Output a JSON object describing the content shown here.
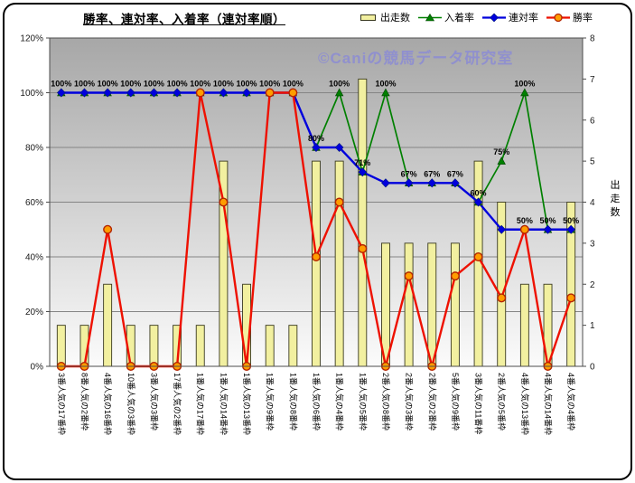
{
  "title": "勝率、連対率、入着率（連対率順）",
  "watermark": "©Caniの競馬データ研究室",
  "legend": [
    {
      "key": "starts",
      "label": "出走数",
      "marker": "bar",
      "color": "#f2f0a0"
    },
    {
      "key": "nyuchaku",
      "label": "入着率",
      "marker": "triangle",
      "color": "#008000"
    },
    {
      "key": "rentai",
      "label": "連対率",
      "marker": "diamond",
      "color": "#0000dd"
    },
    {
      "key": "shoritsu",
      "label": "勝率",
      "marker": "circle",
      "color": "#ee1100"
    }
  ],
  "colors": {
    "bar_fill": "#f2f0a0",
    "bar_stroke": "#3a3a20",
    "nyuchaku": "#008000",
    "rentai": "#0000dd",
    "shoritsu": "#ee1100",
    "marker_fill": "#ff9d00",
    "grid": "#858585",
    "plot_border": "#4d4d4d",
    "plot_top": "#a7a7a7",
    "plot_bottom": "#fbfbfb",
    "axis_text": "#1a1a1a"
  },
  "chart_data": {
    "type": "bar",
    "combo": "bar+line",
    "title": "勝率、連対率、入着率（連対率順）",
    "legend_position": "top",
    "grid": "horizontal",
    "left_axis": {
      "min": 0,
      "max": 120,
      "step": 20,
      "ticks": [
        "0%",
        "20%",
        "40%",
        "60%",
        "80%",
        "100%",
        "120%"
      ]
    },
    "right_axis": {
      "min": 0,
      "max": 8,
      "step": 1,
      "label": "出走数",
      "ticks": [
        "0",
        "1",
        "2",
        "3",
        "4",
        "5",
        "6",
        "7",
        "8"
      ]
    },
    "categories": [
      "3番人気の17番枠",
      "8番人気の2番枠",
      "4番人気の16番枠",
      "10番人気の3番枠",
      "3番人気の3番枠",
      "17番人気の2番枠",
      "1番人気の17番枠",
      "1番人気の14番枠",
      "1番人気の13番枠",
      "1番人気の9番枠",
      "1番人気の8番枠",
      "1番人気の6番枠",
      "1番人気の4番枠",
      "1番人気の5番枠",
      "2番人気の8番枠",
      "2番人気の3番枠",
      "2番人気の2番枠",
      "5番人気の9番枠",
      "3番人気の11番枠",
      "2番人気の5番枠",
      "4番人気の13番枠",
      "4番人気の14番枠",
      "4番人気の4番枠"
    ],
    "series": [
      {
        "key": "starts",
        "name": "出走数",
        "type": "bar",
        "axis": "right",
        "values": [
          1,
          1,
          2,
          1,
          1,
          1,
          1,
          5,
          2,
          1,
          1,
          5,
          5,
          7,
          3,
          3,
          3,
          3,
          5,
          4,
          2,
          2,
          4
        ]
      },
      {
        "key": "nyuchaku",
        "name": "入着率",
        "type": "line",
        "marker": "triangle",
        "axis": "left",
        "values": [
          100,
          100,
          100,
          100,
          100,
          100,
          100,
          100,
          100,
          100,
          100,
          80,
          100,
          71,
          100,
          67,
          67,
          67,
          60,
          75,
          100,
          50,
          50
        ]
      },
      {
        "key": "rentai",
        "name": "連対率",
        "type": "line",
        "marker": "diamond",
        "axis": "left",
        "values": [
          100,
          100,
          100,
          100,
          100,
          100,
          100,
          100,
          100,
          100,
          100,
          80,
          80,
          71,
          67,
          67,
          67,
          67,
          60,
          50,
          50,
          50,
          50
        ]
      },
      {
        "key": "shoritsu",
        "name": "勝率",
        "type": "line",
        "marker": "circle",
        "axis": "left",
        "values": [
          0,
          0,
          50,
          0,
          0,
          0,
          100,
          60,
          0,
          100,
          100,
          40,
          60,
          43,
          0,
          33,
          0,
          33,
          40,
          25,
          50,
          0,
          25
        ]
      }
    ],
    "point_labels": [
      {
        "i": 0,
        "s": "rentai",
        "text": "100%"
      },
      {
        "i": 1,
        "s": "rentai",
        "text": "100%"
      },
      {
        "i": 2,
        "s": "rentai",
        "text": "100%"
      },
      {
        "i": 3,
        "s": "rentai",
        "text": "100%"
      },
      {
        "i": 4,
        "s": "rentai",
        "text": "100%"
      },
      {
        "i": 5,
        "s": "rentai",
        "text": "100%"
      },
      {
        "i": 6,
        "s": "rentai",
        "text": "100%"
      },
      {
        "i": 7,
        "s": "rentai",
        "text": "100%"
      },
      {
        "i": 8,
        "s": "rentai",
        "text": "100%"
      },
      {
        "i": 9,
        "s": "rentai",
        "text": "100%"
      },
      {
        "i": 10,
        "s": "rentai",
        "text": "100%"
      },
      {
        "i": 11,
        "s": "rentai",
        "text": "80%"
      },
      {
        "i": 12,
        "s": "nyuchaku",
        "text": "100%"
      },
      {
        "i": 13,
        "s": "rentai",
        "text": "71%"
      },
      {
        "i": 14,
        "s": "nyuchaku",
        "text": "100%"
      },
      {
        "i": 15,
        "s": "rentai",
        "text": "67%"
      },
      {
        "i": 16,
        "s": "rentai",
        "text": "67%"
      },
      {
        "i": 17,
        "s": "rentai",
        "text": "67%"
      },
      {
        "i": 18,
        "s": "rentai",
        "text": "60%"
      },
      {
        "i": 19,
        "s": "nyuchaku",
        "text": "75%"
      },
      {
        "i": 20,
        "s": "nyuchaku",
        "text": "100%"
      },
      {
        "i": 20,
        "s": "rentai",
        "text": "50%"
      },
      {
        "i": 21,
        "s": "rentai",
        "text": "50%"
      },
      {
        "i": 22,
        "s": "rentai",
        "text": "50%"
      }
    ]
  }
}
